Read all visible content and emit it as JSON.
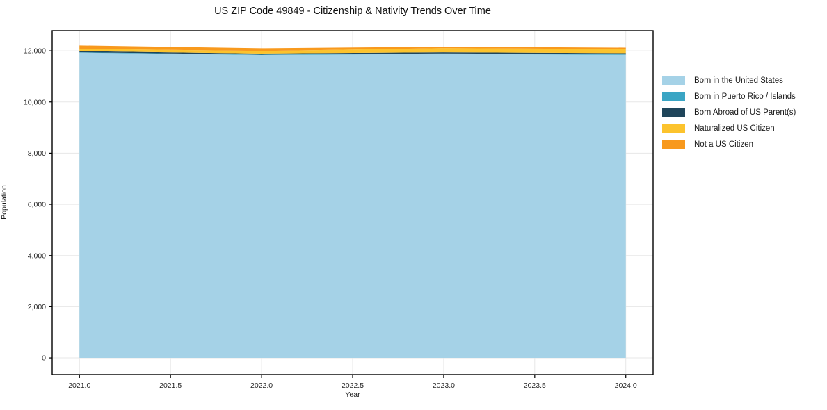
{
  "title": "US ZIP Code 49849 - Citizenship & Nativity Trends Over Time",
  "chart_data": {
    "type": "area",
    "stacked": true,
    "title": "US ZIP Code 49849 - Citizenship & Nativity Trends Over Time",
    "xlabel": "Year",
    "ylabel": "Population",
    "x": [
      2021,
      2022,
      2023,
      2024
    ],
    "series": [
      {
        "name": "Born in the United States",
        "color": "#a5d2e7",
        "values": [
          11930,
          11840,
          11880,
          11845
        ]
      },
      {
        "name": "Born in Puerto Rico / Islands",
        "color": "#3aa5c4",
        "values": [
          15,
          15,
          20,
          20
        ]
      },
      {
        "name": "Born Abroad of US Parent(s)",
        "color": "#1f455a",
        "values": [
          45,
          40,
          45,
          45
        ]
      },
      {
        "name": "Naturalized US Citizen",
        "color": "#fcc32d",
        "values": [
          90,
          100,
          160,
          155
        ]
      },
      {
        "name": "Not a US Citizen",
        "color": "#f8991d",
        "values": [
          130,
          105,
          55,
          60
        ]
      }
    ],
    "xlim": [
      2020.85,
      2024.15
    ],
    "ylim": [
      -650,
      12790
    ],
    "x_ticks": [
      2021.0,
      2021.5,
      2022.0,
      2022.5,
      2023.0,
      2023.5,
      2024.0
    ],
    "y_ticks": [
      0,
      2000,
      4000,
      6000,
      8000,
      10000,
      12000
    ],
    "grid": true,
    "legend_position": "right"
  },
  "colors": {
    "grid": "#e7e7e7",
    "frame": "#000000",
    "tick_text": "#262626"
  }
}
